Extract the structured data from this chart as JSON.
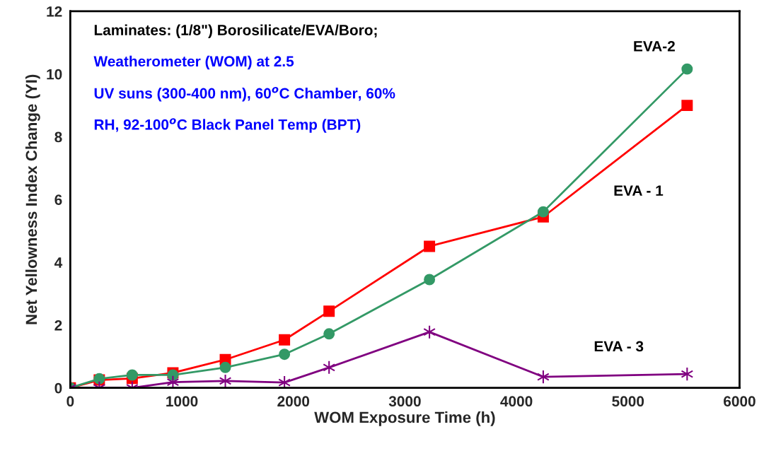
{
  "chart_data": {
    "type": "line",
    "xlabel": "WOM Exposure Time (h)",
    "ylabel": "Net Yellowness Index Change (YI)",
    "annotations": [
      "Laminates: (1/8\") Borosilicate/EVA/Boro;",
      "Weatherometer (WOM) at 2.5",
      "UV suns (300-400 nm), 60$^{o}$C Chamber, 60%",
      "RH, 92-100$^{o}$C Black Panel Temp (BPT)"
    ],
    "x": [
      0,
      260,
      555,
      920,
      1390,
      1920,
      2320,
      3220,
      4240,
      5530
    ],
    "series": [
      {
        "name": "EVA - 1",
        "color": "#ff0000",
        "marker": "square",
        "values": [
          0,
          0.25,
          0.3,
          0.48,
          0.9,
          1.53,
          2.44,
          4.51,
          5.45,
          9.0
        ]
      },
      {
        "name": "EVA-2",
        "color": "#339966",
        "marker": "circle",
        "values": [
          0,
          0.29,
          0.41,
          0.41,
          0.65,
          1.07,
          1.72,
          3.45,
          5.61,
          10.16
        ]
      },
      {
        "name": "EVA - 3",
        "color": "#800080",
        "marker": "cross",
        "values": [
          0,
          0,
          0,
          0.18,
          0.22,
          0.17,
          0.65,
          1.78,
          0.35,
          0.44
        ]
      }
    ],
    "xlim": [
      0,
      6000
    ],
    "xticks": [
      0,
      1000,
      2000,
      3000,
      4000,
      5000,
      6000
    ],
    "ylim": [
      0,
      12
    ],
    "yticks": [
      0,
      2,
      4,
      6,
      8,
      10,
      12
    ],
    "grid": false,
    "legend": false,
    "line_style": "solid"
  }
}
